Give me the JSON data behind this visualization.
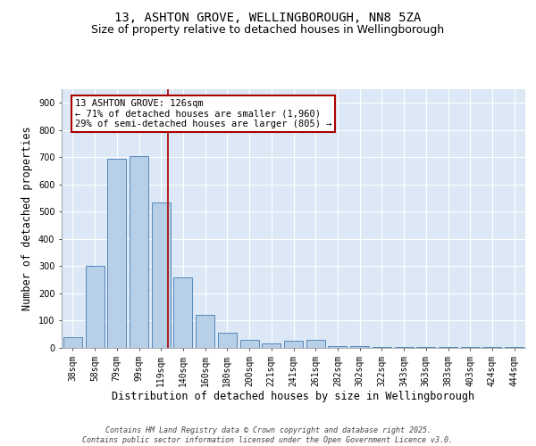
{
  "title_line1": "13, ASHTON GROVE, WELLINGBOROUGH, NN8 5ZA",
  "title_line2": "Size of property relative to detached houses in Wellingborough",
  "xlabel": "Distribution of detached houses by size in Wellingborough",
  "ylabel": "Number of detached properties",
  "categories": [
    "38sqm",
    "58sqm",
    "79sqm",
    "99sqm",
    "119sqm",
    "140sqm",
    "160sqm",
    "180sqm",
    "200sqm",
    "221sqm",
    "241sqm",
    "261sqm",
    "282sqm",
    "302sqm",
    "322sqm",
    "343sqm",
    "363sqm",
    "383sqm",
    "403sqm",
    "424sqm",
    "444sqm"
  ],
  "values": [
    40,
    300,
    695,
    705,
    535,
    260,
    120,
    55,
    30,
    15,
    25,
    30,
    8,
    5,
    3,
    2,
    2,
    2,
    2,
    2,
    2
  ],
  "bar_color": "#b8cfe8",
  "bar_edge_color": "#5588bb",
  "vline_x": 4.3,
  "vline_color": "#aa0000",
  "annotation_line1": "13 ASHTON GROVE: 126sqm",
  "annotation_line2": "← 71% of detached houses are smaller (1,960)",
  "annotation_line3": "29% of semi-detached houses are larger (805) →",
  "annotation_box_edgecolor": "#aa0000",
  "ylim_min": 0,
  "ylim_max": 950,
  "yticks": [
    0,
    100,
    200,
    300,
    400,
    500,
    600,
    700,
    800,
    900
  ],
  "plot_bg_color": "#dce8f5",
  "grid_color": "#ffffff",
  "title_fontsize": 10,
  "subtitle_fontsize": 9,
  "xlabel_fontsize": 8.5,
  "ylabel_fontsize": 8.5,
  "tick_fontsize": 7,
  "annotation_fontsize": 7.5,
  "footer_fontsize": 6,
  "footer_text": "Contains HM Land Registry data © Crown copyright and database right 2025.\nContains public sector information licensed under the Open Government Licence v3.0."
}
